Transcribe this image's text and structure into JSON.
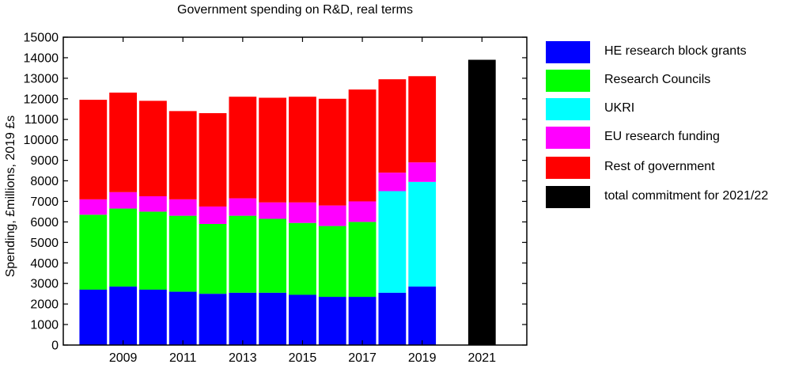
{
  "chart_data": {
    "type": "bar",
    "stacked": true,
    "title": "Government spending on R&D, real terms",
    "xlabel": "",
    "ylabel": "Spending, £millions, 2019 £s",
    "ylim": [
      0,
      15000
    ],
    "yticks": [
      0,
      1000,
      2000,
      3000,
      4000,
      5000,
      6000,
      7000,
      8000,
      9000,
      10000,
      11000,
      12000,
      13000,
      14000,
      15000
    ],
    "xlim": [
      2007,
      2022.5
    ],
    "xticks": [
      2009,
      2011,
      2013,
      2015,
      2017,
      2019,
      2021
    ],
    "x": [
      2008,
      2009,
      2010,
      2011,
      2012,
      2013,
      2014,
      2015,
      2016,
      2017,
      2018,
      2019,
      2021
    ],
    "series": [
      {
        "name": "HE research block grants",
        "color": "#0000ff",
        "values": [
          2700,
          2850,
          2700,
          2600,
          2500,
          2550,
          2550,
          2450,
          2350,
          2350,
          2550,
          2850,
          0
        ]
      },
      {
        "name": "Research Councils",
        "color": "#00ff00",
        "values": [
          3650,
          3800,
          3800,
          3700,
          3400,
          3750,
          3600,
          3500,
          3450,
          3650,
          0,
          0,
          0
        ]
      },
      {
        "name": "UKRI",
        "color": "#00ffff",
        "values": [
          0,
          0,
          0,
          0,
          0,
          0,
          0,
          0,
          0,
          0,
          4950,
          5100,
          0
        ]
      },
      {
        "name": "EU research funding",
        "color": "#ff00ff",
        "values": [
          750,
          800,
          750,
          800,
          850,
          850,
          800,
          1000,
          1000,
          1000,
          900,
          950,
          0
        ]
      },
      {
        "name": "Rest of government",
        "color": "#ff0000",
        "values": [
          4850,
          4850,
          4650,
          4300,
          4550,
          4950,
          5100,
          5150,
          5200,
          5450,
          4550,
          4200,
          0
        ]
      },
      {
        "name": "total commitment for 2021/22",
        "color": "#000000",
        "values": [
          0,
          0,
          0,
          0,
          0,
          0,
          0,
          0,
          0,
          0,
          0,
          0,
          13900
        ]
      }
    ],
    "legend_position": "right",
    "grid": false
  }
}
